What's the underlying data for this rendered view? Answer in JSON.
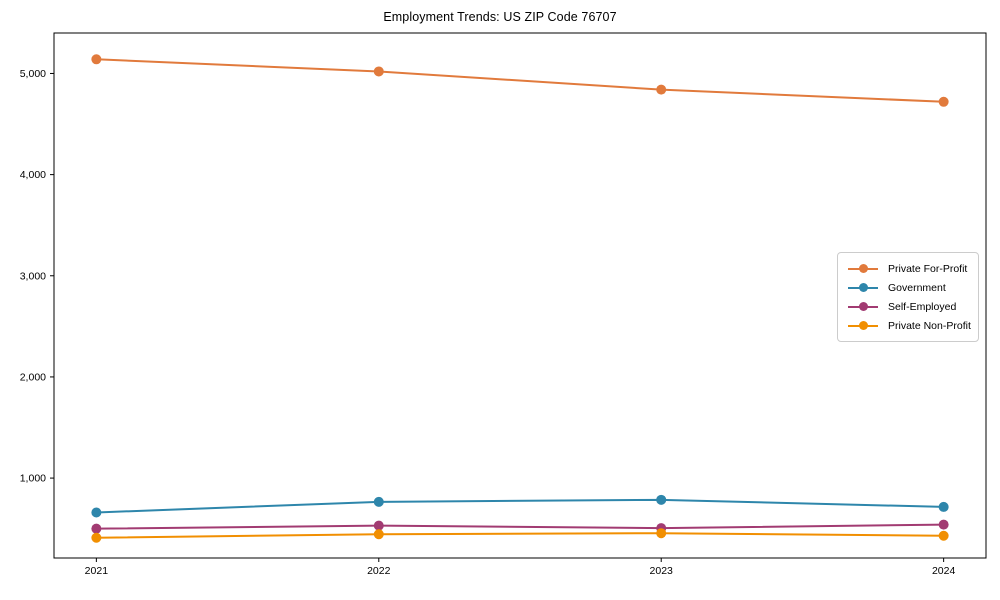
{
  "chart_data": {
    "type": "line",
    "title": "Employment Trends: US ZIP Code 76707",
    "xlabel": "",
    "ylabel": "",
    "categories": [
      "2021",
      "2022",
      "2023",
      "2024"
    ],
    "series": [
      {
        "name": "Private For-Profit",
        "color": "#e17a3c",
        "values": [
          5140,
          5020,
          4840,
          4720
        ]
      },
      {
        "name": "Government",
        "color": "#2e86ab",
        "values": [
          660,
          765,
          785,
          715
        ]
      },
      {
        "name": "Self-Employed",
        "color": "#a23b72",
        "values": [
          500,
          530,
          505,
          540
        ]
      },
      {
        "name": "Private Non-Profit",
        "color": "#f18f01",
        "values": [
          410,
          445,
          455,
          430
        ]
      }
    ],
    "yticks": [
      1000,
      2000,
      3000,
      4000,
      5000
    ],
    "ytick_labels": [
      "1,000",
      "2,000",
      "3,000",
      "4,000",
      "5,000"
    ],
    "ylim": [
      210,
      5400
    ],
    "xlim_index": [
      -0.15,
      3.15
    ],
    "grid": false,
    "legend_position": "center-right",
    "marker": "circle",
    "axis_color": "#000000",
    "background_color": "#ffffff"
  }
}
